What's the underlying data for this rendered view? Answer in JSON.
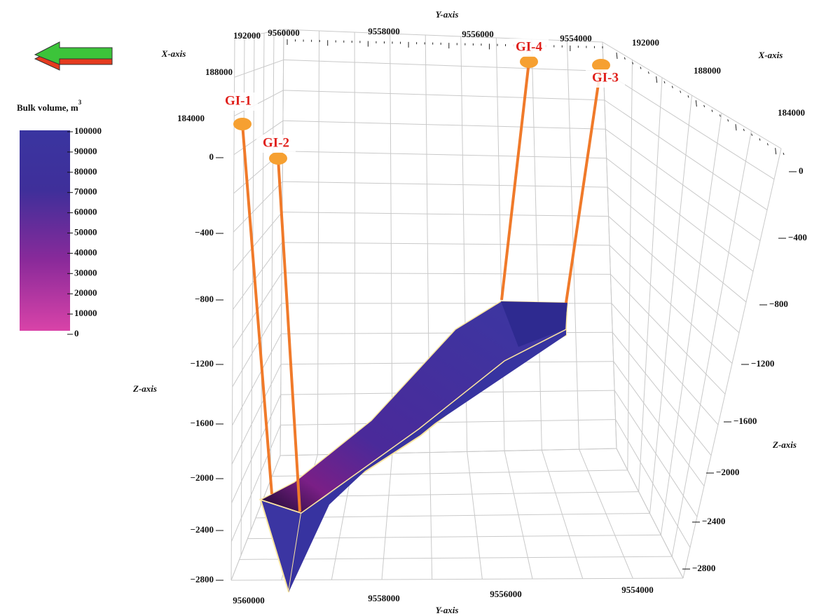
{
  "axes": {
    "y_top": {
      "label": "Y-axis",
      "ticks": [
        "9560000",
        "9558000",
        "9556000",
        "9554000"
      ]
    },
    "y_bottom": {
      "label": "Y-axis",
      "ticks": [
        "9560000",
        "9558000",
        "9556000",
        "9554000"
      ]
    },
    "x_left": {
      "label": "X-axis",
      "ticks": [
        "192000",
        "188000",
        "184000"
      ]
    },
    "x_right": {
      "label": "X-axis",
      "ticks": [
        "192000",
        "188000",
        "184000"
      ]
    },
    "z_left": {
      "label": "Z-axis",
      "ticks": [
        "0",
        "−400",
        "−800",
        "−1200",
        "−1600",
        "−2000",
        "−2400",
        "−2800"
      ]
    },
    "z_right": {
      "label": "Z-axis",
      "ticks": [
        "0",
        "−400",
        "−800",
        "−1200",
        "−1600",
        "−2000",
        "−2400",
        "−2800"
      ]
    }
  },
  "wells": [
    {
      "label": "GI-1"
    },
    {
      "label": "GI-2"
    },
    {
      "label": "GI-3"
    },
    {
      "label": "GI-4"
    }
  ],
  "legend": {
    "title": "Bulk volume, m",
    "title_sup": "3",
    "ticks": [
      "100000",
      "90000",
      "80000",
      "70000",
      "60000",
      "50000",
      "40000",
      "30000",
      "20000",
      "10000",
      "0"
    ]
  }
}
